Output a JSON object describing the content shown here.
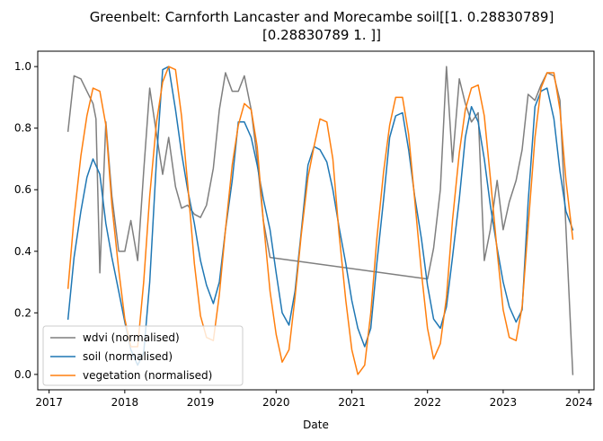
{
  "chart_data": {
    "type": "line",
    "title_lines": [
      "Greenbelt: Carnforth Lancaster and Morecambe soil[[1.         0.28830789]",
      "[0.28830789 1.        ]]"
    ],
    "xlabel": "Date",
    "ylabel": "",
    "xlim": [
      2016.85,
      2024.2
    ],
    "ylim": [
      -0.05,
      1.05
    ],
    "x_ticks": [
      {
        "value": 2017,
        "label": "2017"
      },
      {
        "value": 2018,
        "label": "2018"
      },
      {
        "value": 2019,
        "label": "2019"
      },
      {
        "value": 2020,
        "label": "2020"
      },
      {
        "value": 2021,
        "label": "2021"
      },
      {
        "value": 2022,
        "label": "2022"
      },
      {
        "value": 2023,
        "label": "2023"
      },
      {
        "value": 2024,
        "label": "2024"
      }
    ],
    "y_ticks": [
      {
        "value": 0.0,
        "label": "0.0"
      },
      {
        "value": 0.2,
        "label": "0.2"
      },
      {
        "value": 0.4,
        "label": "0.4"
      },
      {
        "value": 0.6,
        "label": "0.6"
      },
      {
        "value": 0.8,
        "label": "0.8"
      },
      {
        "value": 1.0,
        "label": "1.0"
      }
    ],
    "grid": false,
    "legend_position": "lower-left",
    "series": [
      {
        "name": "wdvi (normalised)",
        "color": "#7f7f7f",
        "points": [
          [
            2017.25,
            0.79
          ],
          [
            2017.33,
            0.97
          ],
          [
            2017.42,
            0.96
          ],
          [
            2017.5,
            0.92
          ],
          [
            2017.58,
            0.88
          ],
          [
            2017.62,
            0.83
          ],
          [
            2017.67,
            0.33
          ],
          [
            2017.75,
            0.82
          ],
          [
            2017.83,
            0.58
          ],
          [
            2017.92,
            0.4
          ],
          [
            2018.0,
            0.4
          ],
          [
            2018.08,
            0.5
          ],
          [
            2018.17,
            0.37
          ],
          [
            2018.25,
            0.66
          ],
          [
            2018.33,
            0.93
          ],
          [
            2018.42,
            0.78
          ],
          [
            2018.5,
            0.65
          ],
          [
            2018.58,
            0.77
          ],
          [
            2018.67,
            0.61
          ],
          [
            2018.75,
            0.54
          ],
          [
            2018.83,
            0.55
          ],
          [
            2018.92,
            0.52
          ],
          [
            2019.0,
            0.51
          ],
          [
            2019.08,
            0.55
          ],
          [
            2019.17,
            0.67
          ],
          [
            2019.25,
            0.86
          ],
          [
            2019.33,
            0.98
          ],
          [
            2019.42,
            0.92
          ],
          [
            2019.5,
            0.92
          ],
          [
            2019.58,
            0.97
          ],
          [
            2019.67,
            0.86
          ],
          [
            2019.75,
            0.7
          ],
          [
            2019.83,
            0.5
          ],
          [
            2019.92,
            0.38
          ],
          [
            2022.0,
            0.31
          ],
          [
            2022.08,
            0.41
          ],
          [
            2022.17,
            0.6
          ],
          [
            2022.25,
            1.0
          ],
          [
            2022.33,
            0.69
          ],
          [
            2022.42,
            0.96
          ],
          [
            2022.5,
            0.88
          ],
          [
            2022.58,
            0.82
          ],
          [
            2022.67,
            0.85
          ],
          [
            2022.75,
            0.37
          ],
          [
            2022.83,
            0.47
          ],
          [
            2022.92,
            0.63
          ],
          [
            2023.0,
            0.47
          ],
          [
            2023.08,
            0.56
          ],
          [
            2023.17,
            0.63
          ],
          [
            2023.25,
            0.73
          ],
          [
            2023.33,
            0.91
          ],
          [
            2023.42,
            0.89
          ],
          [
            2023.5,
            0.94
          ],
          [
            2023.58,
            0.98
          ],
          [
            2023.67,
            0.97
          ],
          [
            2023.75,
            0.89
          ],
          [
            2023.92,
            0.0
          ]
        ]
      },
      {
        "name": "soil (normalised)",
        "color": "#1f77b4",
        "points": [
          [
            2017.25,
            0.18
          ],
          [
            2017.33,
            0.38
          ],
          [
            2017.42,
            0.53
          ],
          [
            2017.5,
            0.64
          ],
          [
            2017.58,
            0.7
          ],
          [
            2017.67,
            0.65
          ],
          [
            2017.75,
            0.49
          ],
          [
            2017.83,
            0.38
          ],
          [
            2017.92,
            0.27
          ],
          [
            2018.0,
            0.17
          ],
          [
            2018.08,
            0.08
          ],
          [
            2018.17,
            0.03
          ],
          [
            2018.25,
            0.07
          ],
          [
            2018.33,
            0.3
          ],
          [
            2018.42,
            0.7
          ],
          [
            2018.5,
            0.99
          ],
          [
            2018.58,
            1.0
          ],
          [
            2018.67,
            0.86
          ],
          [
            2018.75,
            0.72
          ],
          [
            2018.83,
            0.6
          ],
          [
            2018.92,
            0.49
          ],
          [
            2019.0,
            0.37
          ],
          [
            2019.08,
            0.29
          ],
          [
            2019.17,
            0.23
          ],
          [
            2019.25,
            0.3
          ],
          [
            2019.33,
            0.47
          ],
          [
            2019.42,
            0.63
          ],
          [
            2019.5,
            0.82
          ],
          [
            2019.58,
            0.82
          ],
          [
            2019.67,
            0.77
          ],
          [
            2019.75,
            0.68
          ],
          [
            2019.83,
            0.57
          ],
          [
            2019.92,
            0.47
          ],
          [
            2020.0,
            0.33
          ],
          [
            2020.08,
            0.2
          ],
          [
            2020.17,
            0.16
          ],
          [
            2020.25,
            0.27
          ],
          [
            2020.33,
            0.46
          ],
          [
            2020.42,
            0.68
          ],
          [
            2020.5,
            0.74
          ],
          [
            2020.58,
            0.73
          ],
          [
            2020.67,
            0.69
          ],
          [
            2020.75,
            0.6
          ],
          [
            2020.83,
            0.48
          ],
          [
            2020.92,
            0.36
          ],
          [
            2021.0,
            0.24
          ],
          [
            2021.08,
            0.15
          ],
          [
            2021.17,
            0.09
          ],
          [
            2021.25,
            0.15
          ],
          [
            2021.33,
            0.36
          ],
          [
            2021.42,
            0.57
          ],
          [
            2021.5,
            0.77
          ],
          [
            2021.58,
            0.84
          ],
          [
            2021.67,
            0.85
          ],
          [
            2021.75,
            0.73
          ],
          [
            2021.83,
            0.58
          ],
          [
            2021.92,
            0.44
          ],
          [
            2022.0,
            0.29
          ],
          [
            2022.08,
            0.18
          ],
          [
            2022.17,
            0.15
          ],
          [
            2022.25,
            0.22
          ],
          [
            2022.33,
            0.38
          ],
          [
            2022.42,
            0.57
          ],
          [
            2022.5,
            0.77
          ],
          [
            2022.58,
            0.87
          ],
          [
            2022.67,
            0.82
          ],
          [
            2022.75,
            0.7
          ],
          [
            2022.83,
            0.55
          ],
          [
            2022.92,
            0.41
          ],
          [
            2023.0,
            0.3
          ],
          [
            2023.08,
            0.22
          ],
          [
            2023.17,
            0.17
          ],
          [
            2023.25,
            0.21
          ],
          [
            2023.33,
            0.56
          ],
          [
            2023.42,
            0.87
          ],
          [
            2023.5,
            0.92
          ],
          [
            2023.58,
            0.93
          ],
          [
            2023.67,
            0.83
          ],
          [
            2023.75,
            0.66
          ],
          [
            2023.83,
            0.53
          ],
          [
            2023.92,
            0.47
          ]
        ]
      },
      {
        "name": "vegetation (normalised)",
        "color": "#ff7f0e",
        "points": [
          [
            2017.25,
            0.28
          ],
          [
            2017.33,
            0.51
          ],
          [
            2017.42,
            0.71
          ],
          [
            2017.5,
            0.84
          ],
          [
            2017.58,
            0.93
          ],
          [
            2017.67,
            0.92
          ],
          [
            2017.75,
            0.81
          ],
          [
            2017.83,
            0.55
          ],
          [
            2017.92,
            0.34
          ],
          [
            2018.0,
            0.18
          ],
          [
            2018.08,
            0.09
          ],
          [
            2018.17,
            0.09
          ],
          [
            2018.25,
            0.3
          ],
          [
            2018.33,
            0.58
          ],
          [
            2018.42,
            0.82
          ],
          [
            2018.5,
            0.95
          ],
          [
            2018.58,
            1.0
          ],
          [
            2018.67,
            0.99
          ],
          [
            2018.75,
            0.84
          ],
          [
            2018.83,
            0.62
          ],
          [
            2018.92,
            0.36
          ],
          [
            2019.0,
            0.19
          ],
          [
            2019.08,
            0.12
          ],
          [
            2019.17,
            0.11
          ],
          [
            2019.25,
            0.26
          ],
          [
            2019.33,
            0.47
          ],
          [
            2019.42,
            0.68
          ],
          [
            2019.5,
            0.81
          ],
          [
            2019.58,
            0.88
          ],
          [
            2019.67,
            0.86
          ],
          [
            2019.75,
            0.74
          ],
          [
            2019.83,
            0.5
          ],
          [
            2019.92,
            0.27
          ],
          [
            2020.0,
            0.13
          ],
          [
            2020.08,
            0.04
          ],
          [
            2020.17,
            0.08
          ],
          [
            2020.25,
            0.25
          ],
          [
            2020.33,
            0.45
          ],
          [
            2020.42,
            0.64
          ],
          [
            2020.5,
            0.74
          ],
          [
            2020.58,
            0.83
          ],
          [
            2020.67,
            0.82
          ],
          [
            2020.75,
            0.7
          ],
          [
            2020.83,
            0.46
          ],
          [
            2020.92,
            0.24
          ],
          [
            2021.0,
            0.08
          ],
          [
            2021.08,
            0.0
          ],
          [
            2021.17,
            0.03
          ],
          [
            2021.25,
            0.2
          ],
          [
            2021.33,
            0.44
          ],
          [
            2021.42,
            0.66
          ],
          [
            2021.5,
            0.81
          ],
          [
            2021.58,
            0.9
          ],
          [
            2021.67,
            0.9
          ],
          [
            2021.75,
            0.78
          ],
          [
            2021.83,
            0.57
          ],
          [
            2021.92,
            0.33
          ],
          [
            2022.0,
            0.15
          ],
          [
            2022.08,
            0.05
          ],
          [
            2022.17,
            0.1
          ],
          [
            2022.25,
            0.25
          ],
          [
            2022.33,
            0.5
          ],
          [
            2022.42,
            0.72
          ],
          [
            2022.5,
            0.86
          ],
          [
            2022.58,
            0.93
          ],
          [
            2022.67,
            0.94
          ],
          [
            2022.75,
            0.84
          ],
          [
            2022.83,
            0.64
          ],
          [
            2022.92,
            0.4
          ],
          [
            2023.0,
            0.21
          ],
          [
            2023.08,
            0.12
          ],
          [
            2023.17,
            0.11
          ],
          [
            2023.25,
            0.22
          ],
          [
            2023.33,
            0.48
          ],
          [
            2023.42,
            0.77
          ],
          [
            2023.5,
            0.93
          ],
          [
            2023.58,
            0.98
          ],
          [
            2023.67,
            0.98
          ],
          [
            2023.75,
            0.86
          ],
          [
            2023.83,
            0.63
          ],
          [
            2023.92,
            0.44
          ]
        ]
      }
    ]
  }
}
